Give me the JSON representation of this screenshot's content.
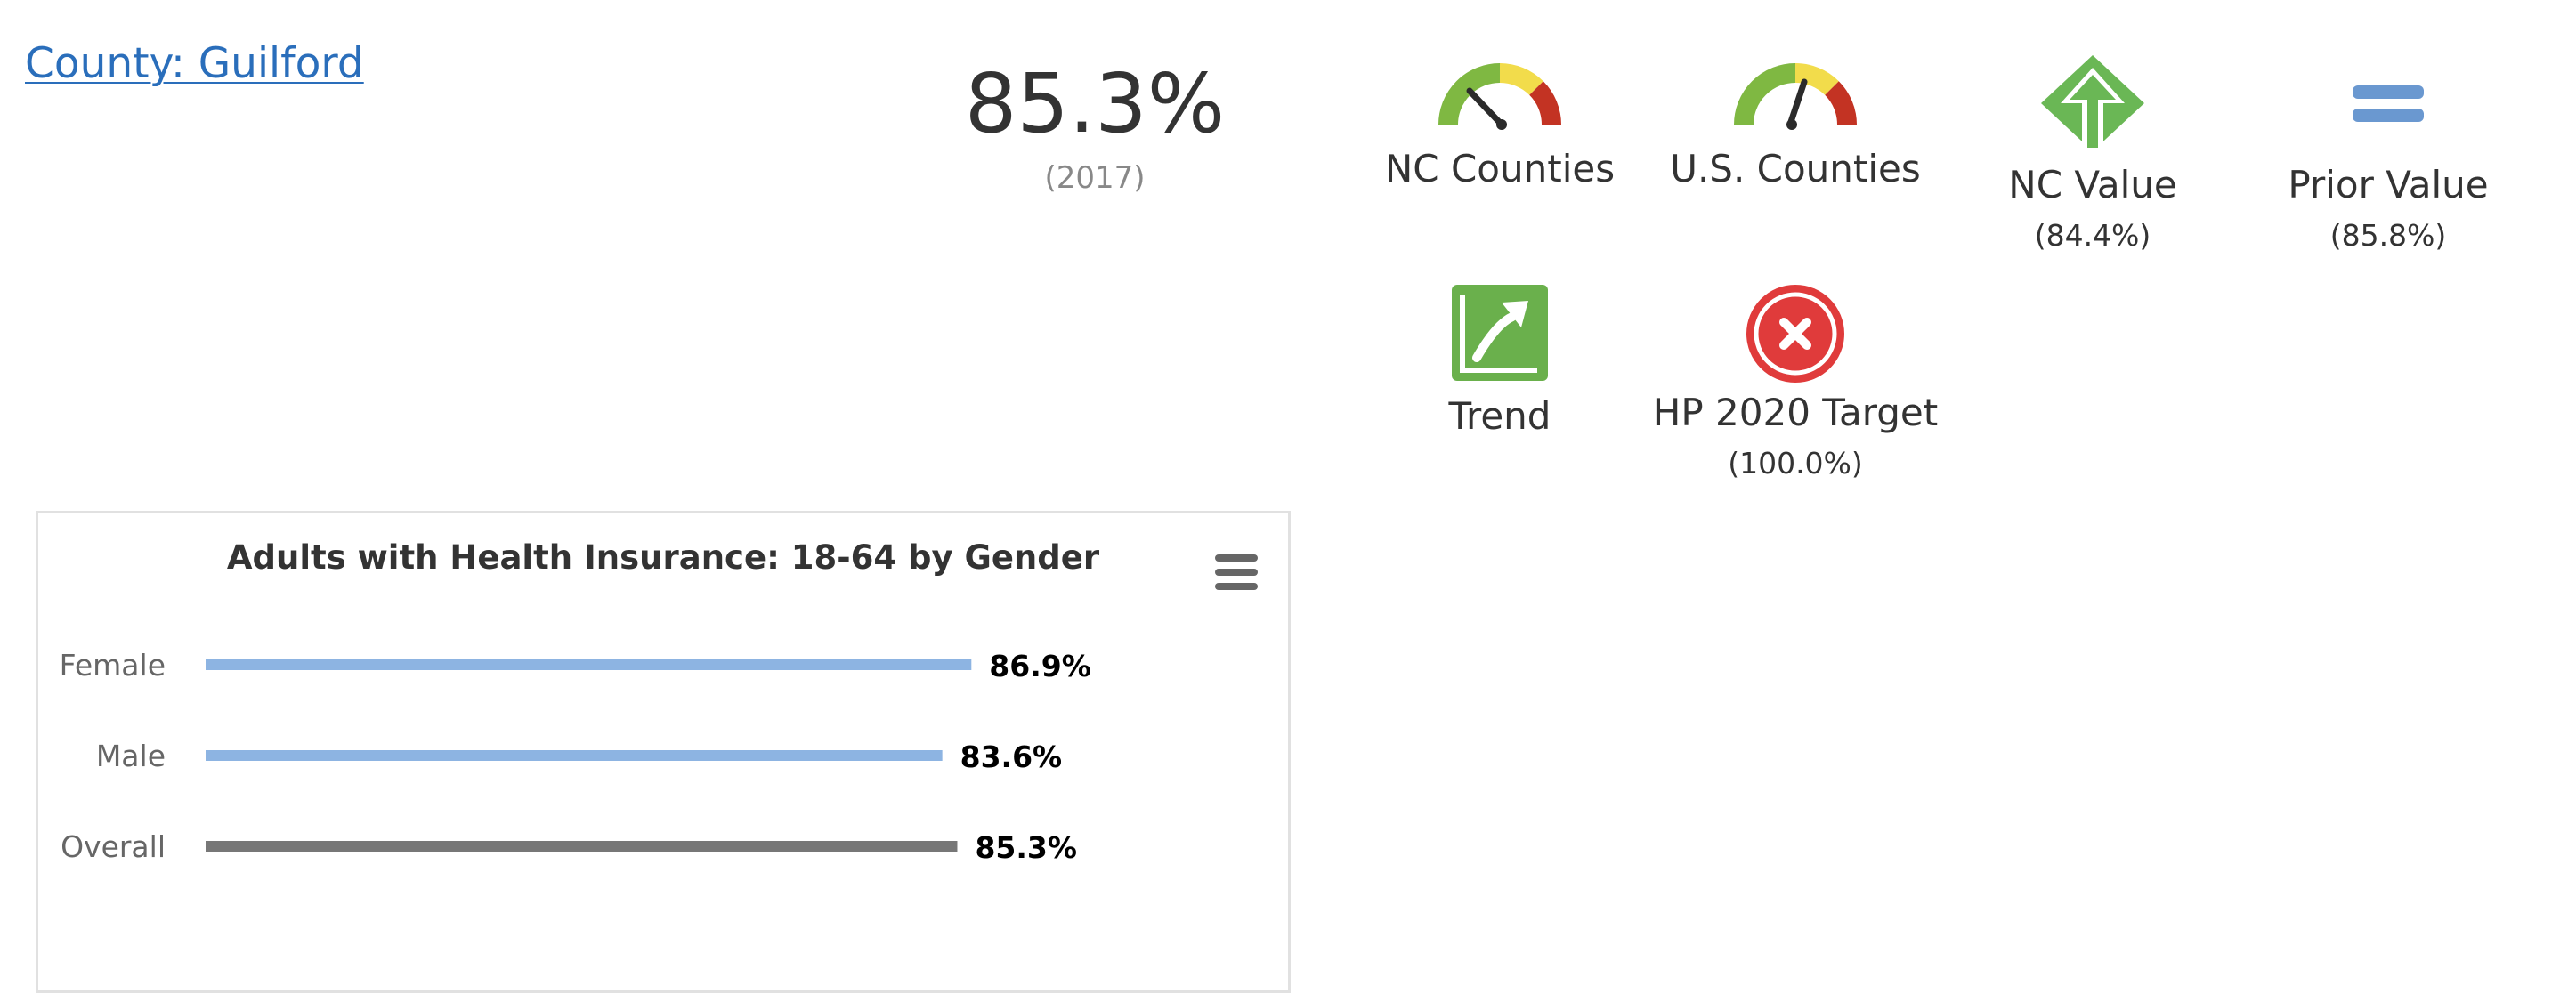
{
  "county": {
    "label": "County: Guilford"
  },
  "main": {
    "value": "85.3%",
    "year": "(2017)"
  },
  "indicators": {
    "nc_counties": {
      "label": "NC Counties",
      "icon": "gauge-icon"
    },
    "us_counties": {
      "label": "U.S. Counties",
      "icon": "gauge-icon"
    },
    "nc_value": {
      "label": "NC Value",
      "sub": "(84.4%)",
      "icon": "green-up-arrow-icon"
    },
    "prior_value": {
      "label": "Prior Value",
      "sub": "(85.8%)",
      "icon": "equal-icon"
    },
    "trend": {
      "label": "Trend",
      "icon": "trend-up-icon"
    },
    "hp_target": {
      "label": "HP 2020 Target",
      "sub": "(100.0%)",
      "icon": "red-x-icon"
    }
  },
  "colors": {
    "gauge_green": "#7fb842",
    "gauge_yellow": "#f2dc4b",
    "gauge_red": "#c33323",
    "arrow_green": "#6ab755",
    "equal_blue": "#6a98d0",
    "trend_green": "#6ab04c",
    "target_red": "#e03b3b",
    "bar_blue": "#8db4e2",
    "bar_gray": "#777777",
    "link_blue": "#2a6ebb"
  },
  "chart_data": {
    "type": "bar",
    "orientation": "horizontal",
    "title": "Adults with Health Insurance: 18-64 by Gender",
    "categories": [
      "Female",
      "Male",
      "Overall"
    ],
    "values": [
      86.9,
      83.6,
      85.3
    ],
    "data_labels": [
      "86.9%",
      "83.6%",
      "85.3%"
    ],
    "colors": [
      "#8db4e2",
      "#8db4e2",
      "#777777"
    ],
    "xlim": [
      0,
      100
    ],
    "grid": false,
    "legend": "none"
  }
}
